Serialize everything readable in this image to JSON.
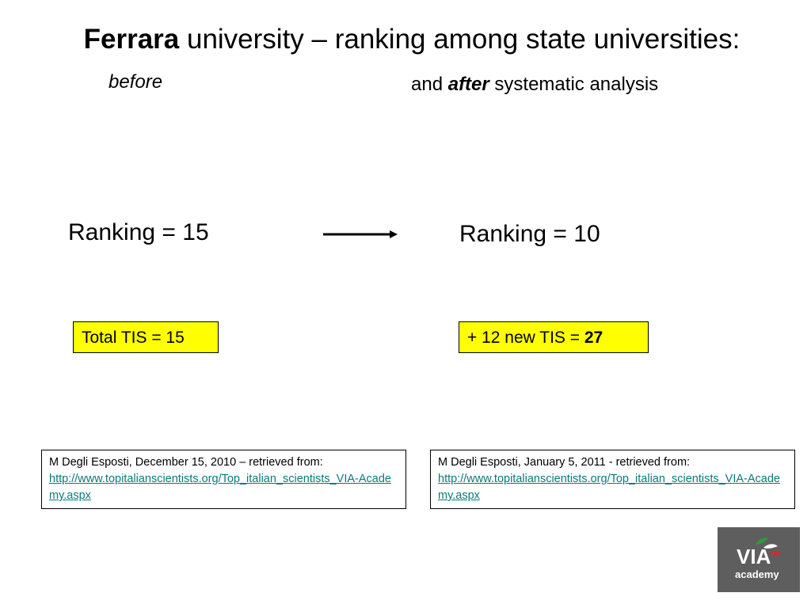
{
  "title": {
    "bold": "Ferrara",
    "rest": " university – ranking among state universities:"
  },
  "before_label": "before",
  "after_label": {
    "prefix": "and ",
    "emph": "after",
    "suffix": " systematic analysis"
  },
  "ranking_before": "Ranking = 15",
  "ranking_after": "Ranking =  10",
  "tis_before": "Total TIS = 15",
  "tis_after": {
    "prefix": "+ 12 new TIS =  ",
    "value": "27"
  },
  "source_before": {
    "text": "M Degli Esposti, December 15, 2010 – retrieved from:",
    "link": "http://www.topitalianscientists.org/Top_italian_scientists_VIA-Academy.aspx"
  },
  "source_after": {
    "text": "M Degli Esposti, January 5, 2011 - retrieved from:",
    "link": "http://www.topitalianscientists.org/Top_italian_scientists_VIA-Academy.aspx"
  },
  "logo": {
    "top": "VIA",
    "bottom": "academy",
    "bg_color": "#5e5e5e",
    "accent_colors": [
      "#2e9c3a",
      "#ffffff",
      "#d22b2b"
    ]
  }
}
